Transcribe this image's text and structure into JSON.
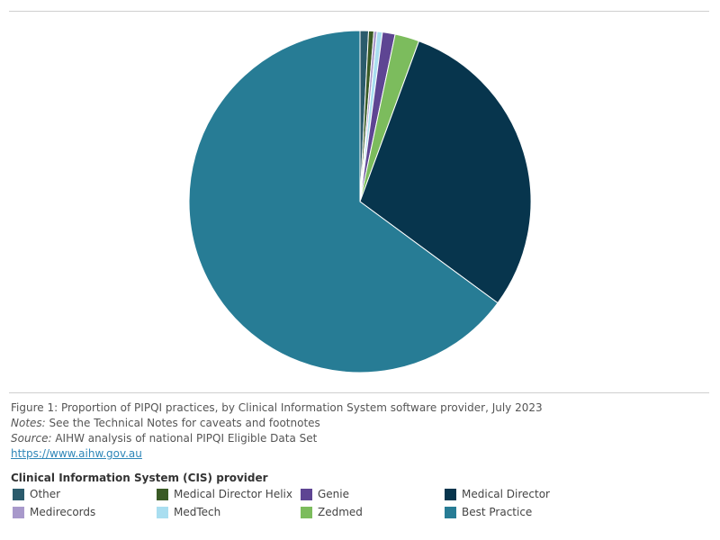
{
  "caption": {
    "figure": "Figure 1: Proportion of PIPQI practices, by Clinical Information System software provider, July 2023",
    "notes_label": "Notes:",
    "notes_text": " See the Technical Notes for caveats and footnotes",
    "source_label": "Source:",
    "source_text": " AIHW analysis of national PIPQI Eligible Data Set",
    "link": "https://www.aihw.gov.au"
  },
  "legend": {
    "title": "Clinical Information System (CIS) provider",
    "items": [
      {
        "label": "Other",
        "color": "#2b5b6c"
      },
      {
        "label": "Medical Director Helix",
        "color": "#3a5a25"
      },
      {
        "label": "Genie",
        "color": "#5e4593"
      },
      {
        "label": "Medical Director",
        "color": "#07354d"
      },
      {
        "label": "Medirecords",
        "color": "#a899cb"
      },
      {
        "label": "MedTech",
        "color": "#a9def0"
      },
      {
        "label": "Zedmed",
        "color": "#7cbc5d"
      },
      {
        "label": "Best Practice",
        "color": "#277c95"
      }
    ]
  },
  "chart_data": {
    "type": "pie",
    "title": "",
    "slices": [
      {
        "label": "Other",
        "value": 0.8,
        "color": "#2b5b6c"
      },
      {
        "label": "Medical Director Helix",
        "value": 0.5,
        "color": "#3a5a25"
      },
      {
        "label": "Medirecords",
        "value": 0.3,
        "color": "#a899cb"
      },
      {
        "label": "MedTech",
        "value": 0.5,
        "color": "#a9def0"
      },
      {
        "label": "Genie",
        "value": 1.2,
        "color": "#5e4593"
      },
      {
        "label": "Zedmed",
        "value": 2.3,
        "color": "#7cbc5d"
      },
      {
        "label": "Medical Director",
        "value": 29.5,
        "color": "#07354d"
      },
      {
        "label": "Best Practice",
        "value": 64.9,
        "color": "#277c95"
      }
    ],
    "start": "12 o'clock",
    "direction": "clockwise"
  }
}
